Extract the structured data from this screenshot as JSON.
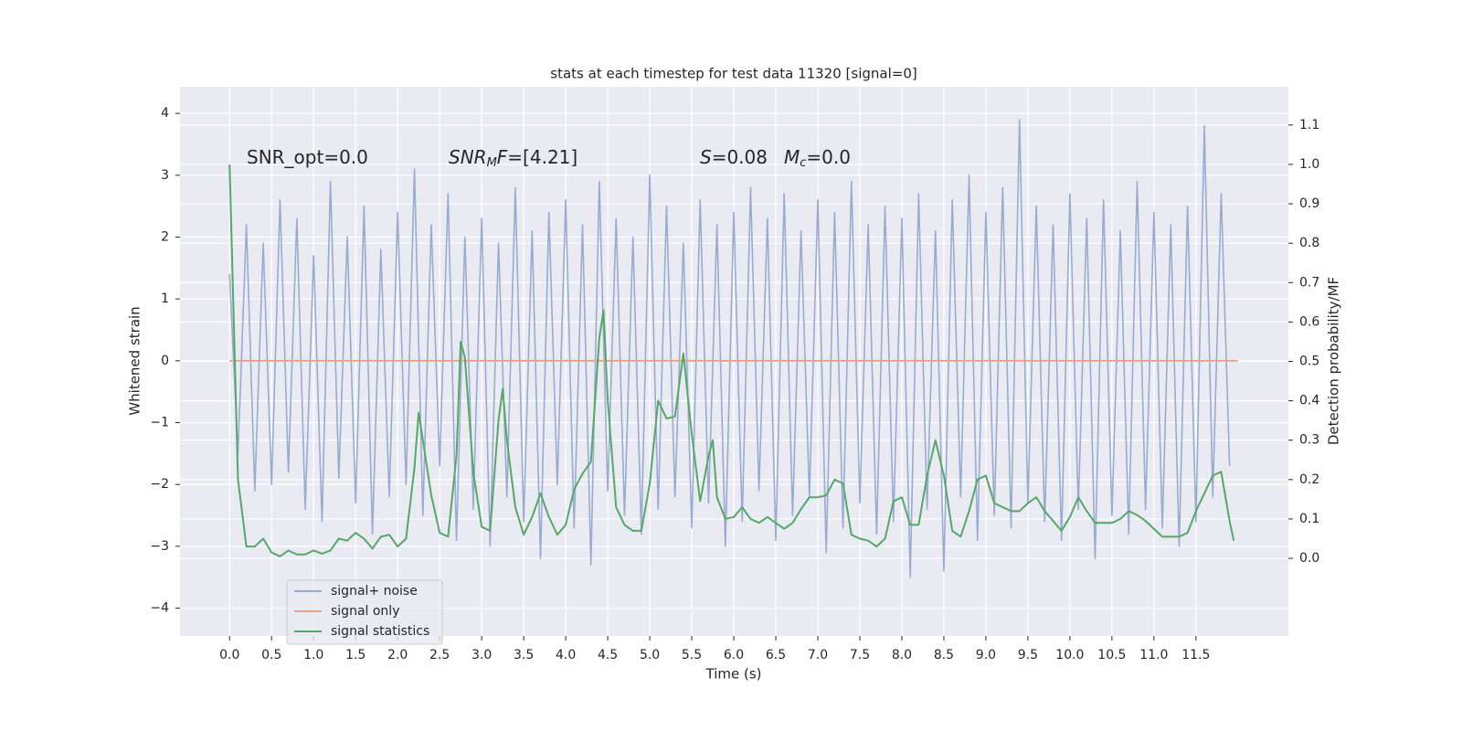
{
  "chart_data": {
    "type": "line",
    "title": "stats at each timestep for test data 11320 [signal=0]",
    "xlabel": "Time (s)",
    "ylabel": "Whitened strain",
    "y2label": "Detection probability/MF",
    "annotations": [
      [
        {
          "text": "SNR_opt=0.0"
        }
      ],
      [
        {
          "text": "SNR",
          "italic": true
        },
        {
          "text": "M",
          "italic": true,
          "sub": true
        },
        {
          "text": "F",
          "italic": true
        },
        {
          "text": "=[4.21]"
        }
      ],
      [
        {
          "text": "S",
          "italic": true
        },
        {
          "text": "=0.08"
        }
      ],
      [
        {
          "text": "M",
          "italic": true
        },
        {
          "text": "c",
          "italic": true,
          "sub": true
        },
        {
          "text": "=0.0"
        }
      ]
    ],
    "xlim": [
      -0.59,
      12.6
    ],
    "ylim": [
      -4.45,
      4.43
    ],
    "y2lim": [
      -0.197,
      1.197
    ],
    "xticks": [
      {
        "value": 0,
        "label": "0.0"
      },
      0.5,
      {
        "value": 1,
        "label": "1.0"
      },
      1.5,
      {
        "value": 2,
        "label": "2.0"
      },
      2.5,
      {
        "value": 3,
        "label": "3.0"
      },
      3.5,
      {
        "value": 4,
        "label": "4.0"
      },
      4.5,
      {
        "value": 5,
        "label": "5.0"
      },
      5.5,
      {
        "value": 6,
        "label": "6.0"
      },
      6.5,
      {
        "value": 7,
        "label": "7.0"
      },
      7.5,
      {
        "value": 8,
        "label": "8.0"
      },
      8.5,
      {
        "value": 9,
        "label": "9.0"
      },
      9.5,
      {
        "value": 10,
        "label": "10.0"
      },
      10.5,
      {
        "value": 11,
        "label": "11.0"
      },
      11.5
    ],
    "yticks": [
      {
        "value": -4,
        "label": "−4"
      },
      {
        "value": -3,
        "label": "−3"
      },
      {
        "value": -2,
        "label": "−2"
      },
      {
        "value": -1,
        "label": "−1"
      },
      0,
      1,
      2,
      3,
      4
    ],
    "y2ticks": [
      {
        "value": 0,
        "label": "0.0"
      },
      0.1,
      0.2,
      0.3,
      0.4,
      0.5,
      0.6,
      0.7,
      0.8,
      0.9,
      {
        "value": 1,
        "label": "1.0"
      },
      1.1
    ],
    "grid": true,
    "legend": "lower left",
    "series": [
      {
        "name": "signal+ noise",
        "color": "#9aabd1",
        "x": [
          0,
          0.1,
          0.2,
          0.3,
          0.4,
          0.5,
          0.6,
          0.7,
          0.8,
          0.9,
          1,
          1.1,
          1.2,
          1.3,
          1.4,
          1.5,
          1.6,
          1.7,
          1.8,
          1.9,
          2,
          2.1,
          2.2,
          2.3,
          2.4,
          2.5,
          2.6,
          2.7,
          2.8,
          2.9,
          3,
          3.1,
          3.2,
          3.3,
          3.4,
          3.5,
          3.6,
          3.7,
          3.8,
          3.9,
          4,
          4.1,
          4.2,
          4.3,
          4.4,
          4.5,
          4.6,
          4.7,
          4.8,
          4.9,
          5,
          5.1,
          5.2,
          5.3,
          5.4,
          5.5,
          5.6,
          5.7,
          5.8,
          5.9,
          6,
          6.1,
          6.2,
          6.3,
          6.4,
          6.5,
          6.6,
          6.7,
          6.8,
          6.9,
          7,
          7.1,
          7.2,
          7.3,
          7.4,
          7.5,
          7.6,
          7.7,
          7.8,
          7.9,
          8,
          8.1,
          8.2,
          8.3,
          8.4,
          8.5,
          8.6,
          8.7,
          8.8,
          8.9,
          9,
          9.1,
          9.2,
          9.3,
          9.4,
          9.5,
          9.6,
          9.7,
          9.8,
          9.9,
          10,
          10.1,
          10.2,
          10.3,
          10.4,
          10.5,
          10.6,
          10.7,
          10.8,
          10.9,
          11,
          11.1,
          11.2,
          11.3,
          11.4,
          11.5,
          11.6,
          11.7,
          11.8,
          11.9
        ],
        "values": [
          1.4,
          -1.5,
          2.2,
          -2.1,
          1.9,
          -2.0,
          2.6,
          -1.8,
          2.3,
          -2.4,
          1.7,
          -2.6,
          2.9,
          -1.9,
          2.0,
          -2.3,
          2.5,
          -2.8,
          1.8,
          -2.2,
          2.4,
          -2.0,
          3.1,
          -2.5,
          2.2,
          -1.7,
          2.7,
          -2.9,
          2.0,
          -2.4,
          2.3,
          -3.0,
          1.9,
          -2.2,
          2.8,
          -2.6,
          2.1,
          -3.2,
          2.4,
          -2.0,
          2.6,
          -2.7,
          2.2,
          -3.3,
          2.9,
          -2.1,
          2.3,
          -2.5,
          2.0,
          -2.8,
          3.0,
          -2.4,
          2.5,
          -2.2,
          1.9,
          -2.7,
          2.6,
          -2.3,
          2.2,
          -3.0,
          2.4,
          -2.6,
          2.8,
          -2.1,
          2.3,
          -2.9,
          2.7,
          -2.5,
          2.1,
          -2.2,
          2.6,
          -3.1,
          2.4,
          -2.7,
          2.9,
          -2.3,
          2.2,
          -2.8,
          2.5,
          -2.6,
          2.3,
          -3.5,
          2.7,
          -2.4,
          2.1,
          -3.4,
          2.6,
          -2.2,
          3.0,
          -2.9,
          2.4,
          -2.5,
          2.8,
          -2.7,
          3.9,
          -2.3,
          2.5,
          -2.6,
          2.2,
          -2.9,
          2.7,
          -2.4,
          2.3,
          -3.2,
          2.6,
          -2.5,
          2.1,
          -2.8,
          2.9,
          -2.4,
          2.4,
          -2.7,
          2.2,
          -3.0,
          2.5,
          -2.6,
          3.8,
          -2.2,
          2.7,
          -1.7
        ]
      },
      {
        "name": "signal only",
        "color": "#e6a587",
        "x": [
          0,
          12
        ],
        "values": [
          0,
          0
        ]
      },
      {
        "name": "signal statistics",
        "color": "#55a868",
        "axis": "y2",
        "x": [
          0,
          0.1,
          0.2,
          0.3,
          0.4,
          0.5,
          0.6,
          0.7,
          0.8,
          0.9,
          1,
          1.1,
          1.2,
          1.3,
          1.4,
          1.5,
          1.6,
          1.7,
          1.8,
          1.9,
          2,
          2.1,
          2.2,
          2.25,
          2.3,
          2.4,
          2.5,
          2.6,
          2.7,
          2.75,
          2.8,
          2.9,
          3,
          3.1,
          3.2,
          3.25,
          3.3,
          3.4,
          3.5,
          3.6,
          3.7,
          3.8,
          3.9,
          4,
          4.1,
          4.2,
          4.3,
          4.4,
          4.45,
          4.5,
          4.6,
          4.7,
          4.8,
          4.9,
          5,
          5.1,
          5.2,
          5.3,
          5.4,
          5.5,
          5.6,
          5.7,
          5.75,
          5.8,
          5.9,
          6,
          6.1,
          6.2,
          6.3,
          6.4,
          6.5,
          6.6,
          6.7,
          6.8,
          6.9,
          7,
          7.1,
          7.2,
          7.3,
          7.4,
          7.5,
          7.6,
          7.7,
          7.8,
          7.9,
          8,
          8.1,
          8.2,
          8.3,
          8.4,
          8.5,
          8.6,
          8.7,
          8.8,
          8.9,
          9,
          9.1,
          9.2,
          9.3,
          9.4,
          9.5,
          9.6,
          9.7,
          9.8,
          9.9,
          10,
          10.1,
          10.2,
          10.3,
          10.4,
          10.5,
          10.6,
          10.7,
          10.8,
          10.9,
          11,
          11.1,
          11.2,
          11.3,
          11.4,
          11.5,
          11.6,
          11.7,
          11.8,
          11.9,
          11.95
        ],
        "values": [
          1.0,
          0.2,
          0.03,
          0.03,
          0.05,
          0.015,
          0.005,
          0.02,
          0.01,
          0.01,
          0.02,
          0.012,
          0.02,
          0.05,
          0.045,
          0.065,
          0.05,
          0.025,
          0.055,
          0.06,
          0.03,
          0.05,
          0.23,
          0.37,
          0.3,
          0.16,
          0.065,
          0.055,
          0.26,
          0.55,
          0.51,
          0.22,
          0.08,
          0.07,
          0.35,
          0.43,
          0.3,
          0.13,
          0.06,
          0.105,
          0.165,
          0.105,
          0.06,
          0.085,
          0.175,
          0.215,
          0.245,
          0.56,
          0.63,
          0.4,
          0.13,
          0.085,
          0.07,
          0.07,
          0.19,
          0.4,
          0.355,
          0.36,
          0.52,
          0.315,
          0.145,
          0.26,
          0.3,
          0.155,
          0.1,
          0.105,
          0.13,
          0.1,
          0.09,
          0.105,
          0.09,
          0.075,
          0.09,
          0.125,
          0.155,
          0.155,
          0.16,
          0.2,
          0.19,
          0.06,
          0.05,
          0.045,
          0.03,
          0.05,
          0.145,
          0.155,
          0.085,
          0.085,
          0.21,
          0.3,
          0.21,
          0.07,
          0.055,
          0.12,
          0.2,
          0.21,
          0.14,
          0.13,
          0.12,
          0.12,
          0.14,
          0.155,
          0.12,
          0.095,
          0.07,
          0.105,
          0.155,
          0.12,
          0.09,
          0.09,
          0.09,
          0.1,
          0.12,
          0.11,
          0.095,
          0.075,
          0.055,
          0.055,
          0.055,
          0.065,
          0.12,
          0.165,
          0.21,
          0.22,
          0.095,
          0.045
        ]
      }
    ]
  }
}
